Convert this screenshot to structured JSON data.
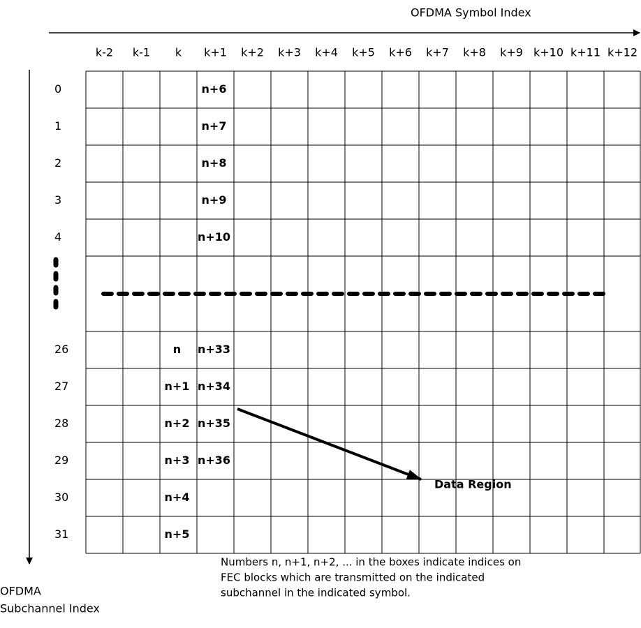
{
  "x_axis_title": "OFDMA Symbol Index",
  "y_axis_title": [
    "OFDMA",
    "Subchannel Index"
  ],
  "columns": [
    "k-2",
    "k-1",
    "k",
    "k+1",
    "k+2",
    "k+3",
    "k+4",
    "k+5",
    "k+6",
    "k+7",
    "k+8",
    "k+9",
    "k+10",
    "k+11",
    "k+12"
  ],
  "rows": [
    {
      "label": "0",
      "cells": [
        null,
        null,
        null,
        "n+6"
      ]
    },
    {
      "label": "1",
      "cells": [
        null,
        null,
        null,
        "n+7"
      ]
    },
    {
      "label": "2",
      "cells": [
        null,
        null,
        null,
        "n+8"
      ]
    },
    {
      "label": "3",
      "cells": [
        null,
        null,
        null,
        "n+9"
      ]
    },
    {
      "label": "4",
      "cells": [
        null,
        null,
        null,
        "n+10"
      ]
    },
    {
      "label": "26",
      "cells": [
        null,
        null,
        "n",
        "n+33"
      ]
    },
    {
      "label": "27",
      "cells": [
        null,
        null,
        "n+1",
        "n+34"
      ]
    },
    {
      "label": "28",
      "cells": [
        null,
        null,
        "n+2",
        "n+35"
      ]
    },
    {
      "label": "29",
      "cells": [
        null,
        null,
        "n+3",
        "n+36"
      ]
    },
    {
      "label": "30",
      "cells": [
        null,
        null,
        "n+4",
        null
      ]
    },
    {
      "label": "31",
      "cells": [
        null,
        null,
        "n+5",
        null
      ]
    }
  ],
  "annotation": "Data Region",
  "note": [
    "Numbers n, n+1, n+2, ... in the boxes indicate indices on",
    "FEC blocks which are transmitted on the indicated",
    "subchannel in the indicated symbol."
  ]
}
